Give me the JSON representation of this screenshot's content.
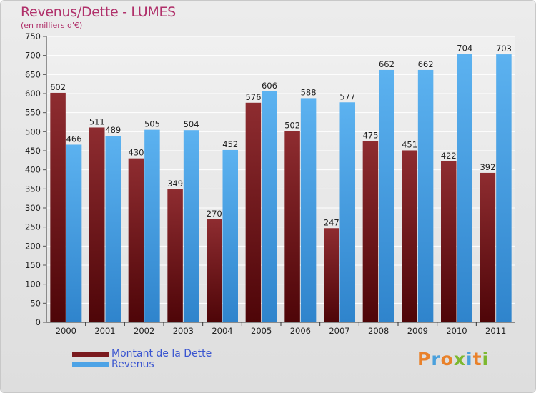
{
  "chart_data": {
    "type": "bar",
    "title": "Revenus/Dette - LUMES",
    "subtitle": "(en milliers d'€)",
    "categories": [
      "2000",
      "2001",
      "2002",
      "2003",
      "2004",
      "2005",
      "2006",
      "2007",
      "2008",
      "2009",
      "2010",
      "2011"
    ],
    "series": [
      {
        "name": "Montant de la Dette",
        "color": "#7a1a1e",
        "values": [
          602,
          511,
          430,
          349,
          270,
          576,
          502,
          247,
          475,
          451,
          422,
          392
        ]
      },
      {
        "name": "Revenus",
        "color": "#4da3e6",
        "values": [
          466,
          489,
          505,
          504,
          452,
          606,
          588,
          577,
          662,
          662,
          704,
          703
        ]
      }
    ],
    "yticks": [
      0,
      50,
      100,
      150,
      200,
      250,
      300,
      350,
      400,
      450,
      500,
      550,
      600,
      650,
      700,
      750
    ],
    "ylim": [
      0,
      750
    ],
    "grid": true,
    "legend": "bottom-left"
  },
  "brand": {
    "text": "Proxiti",
    "colors": [
      "#e9812a",
      "#4aa0dc",
      "#e9812a",
      "#7cb82f",
      "#4aa0dc",
      "#e9812a",
      "#7cb82f"
    ]
  }
}
